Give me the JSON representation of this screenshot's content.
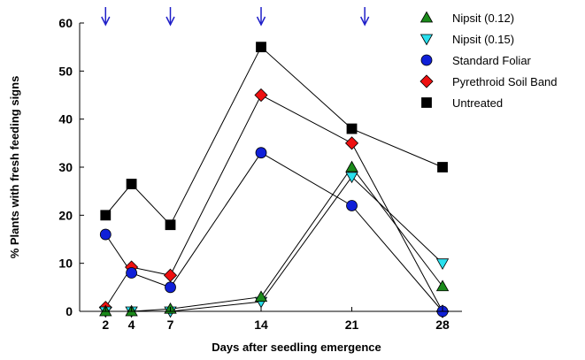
{
  "chart_data": {
    "type": "line",
    "title": "",
    "xlabel": "Days after seedling emergence",
    "ylabel": "% Plants with fresh feeding signs",
    "xlim": [
      0,
      29.5
    ],
    "ylim": [
      0,
      60
    ],
    "x_ticks": [
      2,
      4,
      7,
      14,
      21,
      28
    ],
    "y_ticks": [
      0,
      10,
      20,
      30,
      40,
      50,
      60
    ],
    "grid": false,
    "legend_position": "top-right",
    "application_arrows_x": [
      2,
      7,
      14,
      22
    ],
    "arrow_color": "#1f1fc8",
    "series": [
      {
        "name": "Nipsit (0.12)",
        "marker": "triangle-up",
        "color": "#1a8a1a",
        "x": [
          2,
          4,
          7,
          14,
          21,
          28
        ],
        "values": [
          0,
          0,
          0.5,
          3,
          30,
          5.2
        ]
      },
      {
        "name": "Nipsit (0.15)",
        "marker": "triangle-down",
        "color": "#29e0ee",
        "x": [
          2,
          4,
          7,
          14,
          21,
          28
        ],
        "values": [
          0,
          0,
          0,
          2,
          28,
          10
        ]
      },
      {
        "name": "Standard Foliar",
        "marker": "circle",
        "color": "#1020d8",
        "x": [
          2,
          4,
          7,
          14,
          21,
          28
        ],
        "values": [
          16,
          8,
          5,
          33,
          22,
          0
        ]
      },
      {
        "name": "Pyrethroid Soil Band",
        "marker": "diamond",
        "color": "#ee1010",
        "x": [
          2,
          4,
          7,
          14,
          21,
          28
        ],
        "values": [
          0.8,
          9.2,
          7.5,
          45,
          35,
          0
        ]
      },
      {
        "name": "Untreated",
        "marker": "square",
        "color": "#000000",
        "x": [
          2,
          4,
          7,
          14,
          21,
          28
        ],
        "values": [
          20,
          26.5,
          18,
          55,
          38,
          30
        ]
      }
    ]
  }
}
